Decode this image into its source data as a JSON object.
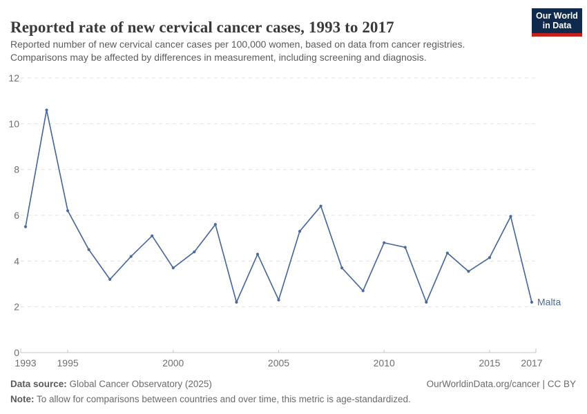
{
  "header": {
    "title": "Reported rate of new cervical cancer cases, 1993 to 2017",
    "subtitle_lines": [
      "Reported number of new cervical cancer cases per 100,000 women, based on data from cancer registries.",
      "Comparisons may be affected by differences in measurement, including screening and diagnosis."
    ],
    "logo": {
      "line1": "Our World",
      "line2": "in Data"
    }
  },
  "chart_data": {
    "type": "line",
    "title": "Reported rate of new cervical cancer cases, 1993 to 2017",
    "xlabel": "",
    "ylabel": "",
    "x": [
      1993,
      1994,
      1995,
      1996,
      1997,
      1998,
      1999,
      2000,
      2001,
      2002,
      2003,
      2004,
      2005,
      2006,
      2007,
      2008,
      2009,
      2010,
      2011,
      2012,
      2013,
      2014,
      2015,
      2016,
      2017
    ],
    "series": [
      {
        "name": "Malta",
        "color": "#4c6a9c",
        "values": [
          5.5,
          10.6,
          6.2,
          4.5,
          3.2,
          4.2,
          5.1,
          3.7,
          4.4,
          5.6,
          2.2,
          4.3,
          2.3,
          5.3,
          6.4,
          3.7,
          2.7,
          4.8,
          4.6,
          2.2,
          4.35,
          3.55,
          4.15,
          5.95,
          2.2
        ]
      }
    ],
    "xlim": [
      1993,
      2017
    ],
    "ylim": [
      0,
      12
    ],
    "y_ticks": [
      0,
      2,
      4,
      6,
      8,
      10,
      12
    ],
    "x_ticks": [
      {
        "year": 1993,
        "label": "1993",
        "tick": false
      },
      {
        "year": 1995,
        "label": "1995",
        "tick": true
      },
      {
        "year": 2000,
        "label": "2000",
        "tick": true
      },
      {
        "year": 2005,
        "label": "2005",
        "tick": true
      },
      {
        "year": 2010,
        "label": "2010",
        "tick": true
      },
      {
        "year": 2015,
        "label": "2015",
        "tick": true
      },
      {
        "year": 2017,
        "label": "2017",
        "tick": false
      }
    ],
    "grid": "horizontal-dashed",
    "legend_position": "end-of-line",
    "colors": {
      "line": "#4c6a9c",
      "gridline": "#e0e0e0",
      "axis": "#c4c4c4",
      "tick_label": "#6e6e6e"
    }
  },
  "footer": {
    "source_label": "Data source:",
    "source_value": " Global Cancer Observatory (2025)",
    "note_label": "Note:",
    "note_value": " To allow for comparisons between countries and over time, this metric is age-standardized.",
    "link": "OurWorldinData.org/cancer | CC BY"
  }
}
